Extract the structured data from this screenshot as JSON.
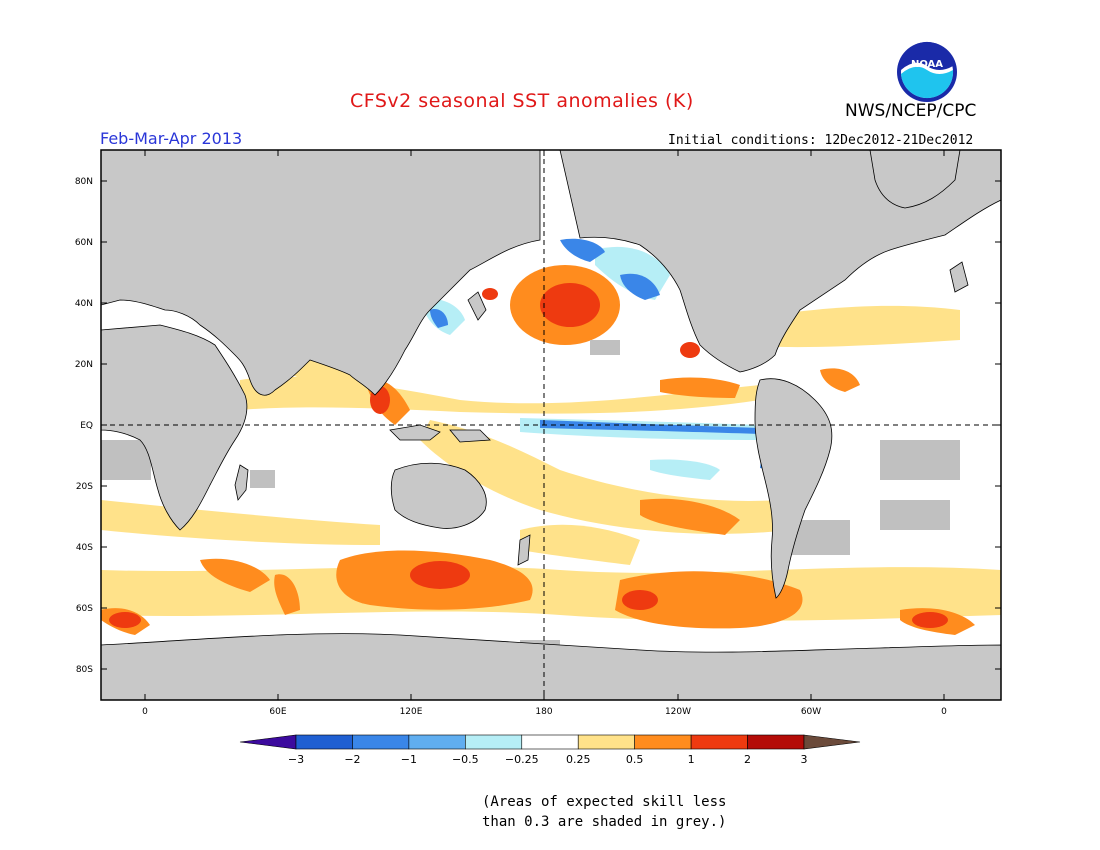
{
  "header": {
    "title": "CFSv2 seasonal SST anomalies (K)",
    "agency": "NWS/NCEP/CPC",
    "season": "Feb-Mar-Apr 2013",
    "initial_conditions": "Initial conditions: 12Dec2012-21Dec2012",
    "logo_text": "NOAA"
  },
  "map": {
    "projection": "cylindrical equidistant",
    "lat_range": [
      -90,
      90
    ],
    "lon_range": [
      -20,
      380
    ],
    "lat_ticks": [
      "80N",
      "60N",
      "40N",
      "20N",
      "EQ",
      "20S",
      "40S",
      "60S",
      "80S"
    ],
    "lon_ticks": [
      "0",
      "60E",
      "120E",
      "180",
      "120W",
      "60W",
      "0"
    ],
    "reference_lines": [
      "equator",
      "dateline"
    ]
  },
  "colorbar": {
    "labels": [
      "-3",
      "-2",
      "-1",
      "-0.5",
      "-0.25",
      "0.25",
      "0.5",
      "1",
      "2",
      "3"
    ],
    "colors": [
      "#3c0a9e",
      "#1f5fd2",
      "#3a86e8",
      "#60aef0",
      "#b6eef6",
      "#ffffff",
      "#ffe28a",
      "#ff8c1e",
      "#ee3a10",
      "#b40c08",
      "#6b4a3a"
    ]
  },
  "legend": {
    "land_color": "#c8c8c8",
    "skill_color": "#c0c0c0",
    "note_line1": "(Areas of expected skill less",
    "note_line2": "than 0.3 are shaded in grey.)"
  }
}
